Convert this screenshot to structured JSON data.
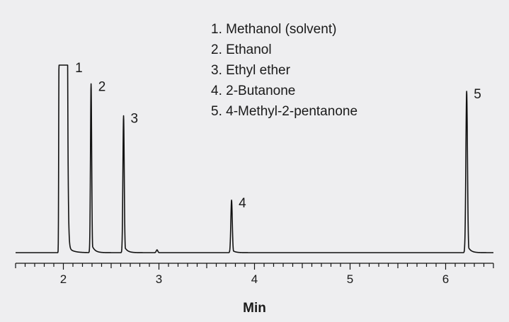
{
  "chart_data": {
    "type": "line",
    "title": "",
    "xlabel": "Min",
    "ylabel": "",
    "xlim": [
      1.5,
      6.5
    ],
    "ylim": [
      0,
      1
    ],
    "xticks": [
      "2",
      "3",
      "4",
      "5",
      "6"
    ],
    "grid": false,
    "legend_position": "top-center",
    "legend": [
      "1. Methanol (solvent)",
      "2. Ethanol",
      "3. Ethyl ether",
      "4. 2-Butanone",
      "5. 4-Methyl-2-pentanone"
    ],
    "peaks": [
      {
        "label": "1",
        "x": 1.96,
        "height": 1.0,
        "flat_top": true
      },
      {
        "label": "2",
        "x": 2.29,
        "height": 0.9
      },
      {
        "label": "3",
        "x": 2.63,
        "height": 0.73
      },
      {
        "label": "4",
        "x": 3.76,
        "height": 0.28
      },
      {
        "label": "5",
        "x": 6.22,
        "height": 0.86
      }
    ],
    "minor_peaks": [
      {
        "x": 2.98,
        "height": 0.015
      }
    ]
  }
}
